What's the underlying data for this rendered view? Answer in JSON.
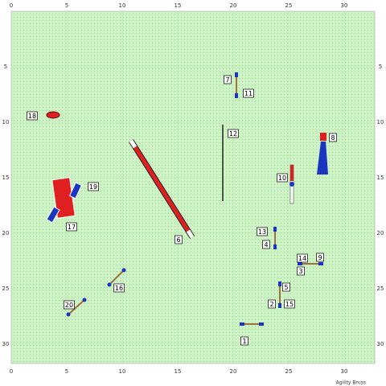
{
  "axes": {
    "x_labels": [
      "0",
      "5",
      "10",
      "15",
      "20",
      "25",
      "30"
    ],
    "y_labels": [
      "5",
      "10",
      "15",
      "20",
      "25",
      "30"
    ]
  },
  "obstacles": [
    {
      "label": "1"
    },
    {
      "label": "2"
    },
    {
      "label": "3"
    },
    {
      "label": "4"
    },
    {
      "label": "5"
    },
    {
      "label": "6"
    },
    {
      "label": "7"
    },
    {
      "label": "8"
    },
    {
      "label": "9"
    },
    {
      "label": "10"
    },
    {
      "label": "11"
    },
    {
      "label": "12"
    },
    {
      "label": "13"
    },
    {
      "label": "14"
    },
    {
      "label": "15"
    },
    {
      "label": "16"
    },
    {
      "label": "17"
    },
    {
      "label": "18"
    },
    {
      "label": "19"
    },
    {
      "label": "20"
    }
  ],
  "credit": "Agility Bruss"
}
